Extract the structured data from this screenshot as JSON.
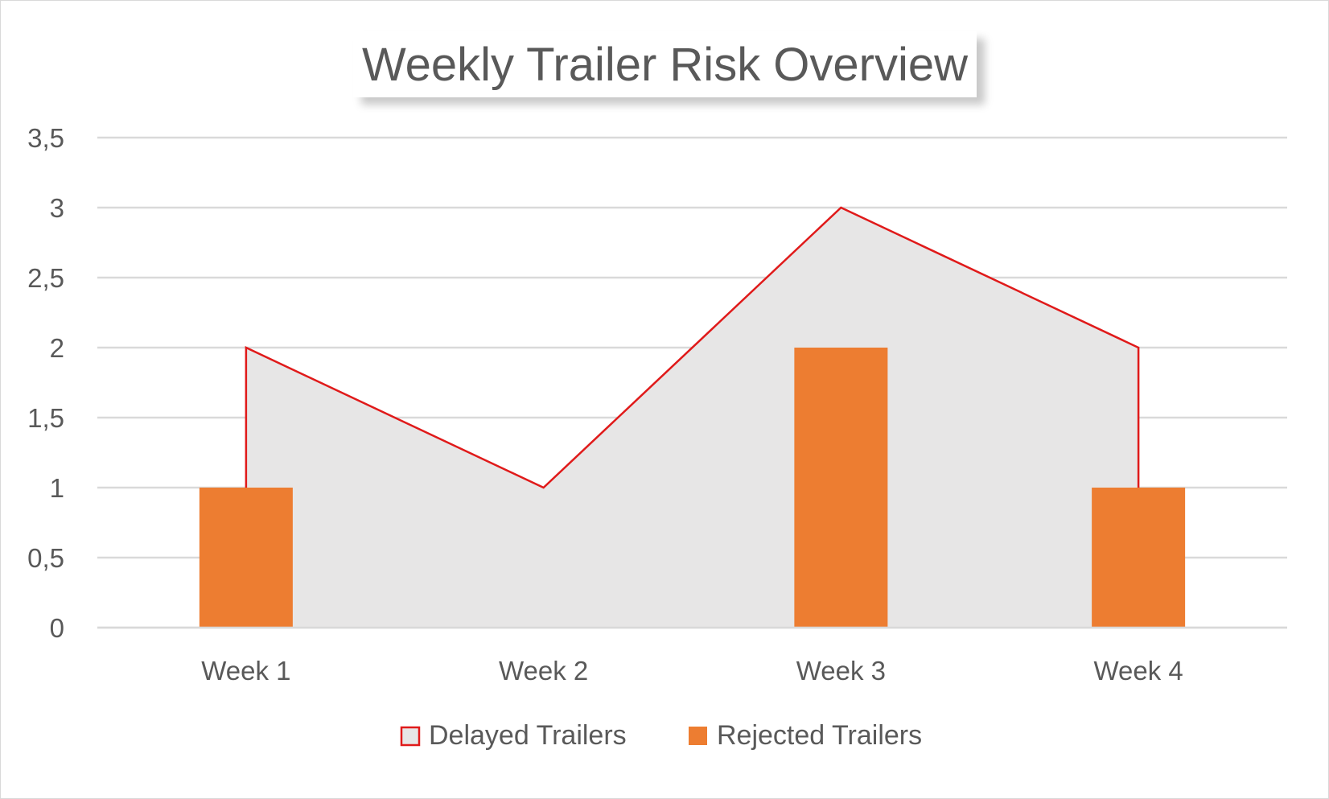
{
  "chart_data": {
    "type": "area",
    "title": "Weekly Trailer Risk Overview",
    "xlabel": "",
    "ylabel": "",
    "categories": [
      "Week 1",
      "Week 2",
      "Week 3",
      "Week 4"
    ],
    "ylim": [
      0,
      3.5
    ],
    "yticks": [
      "0",
      "0,5",
      "1",
      "1,5",
      "2",
      "2,5",
      "3",
      "3,5"
    ],
    "ytick_values": [
      0,
      0.5,
      1,
      1.5,
      2,
      2.5,
      3,
      3.5
    ],
    "grid": true,
    "legend_position": "bottom",
    "series": [
      {
        "name": "Delayed Trailers",
        "type": "area",
        "values": [
          2,
          1,
          3,
          2
        ],
        "fill_color": "#e7e6e6",
        "line_color": "#e01a1a"
      },
      {
        "name": "Rejected Trailers",
        "type": "bar",
        "values": [
          1,
          0,
          2,
          1
        ],
        "fill_color": "#ed7d31"
      }
    ]
  }
}
